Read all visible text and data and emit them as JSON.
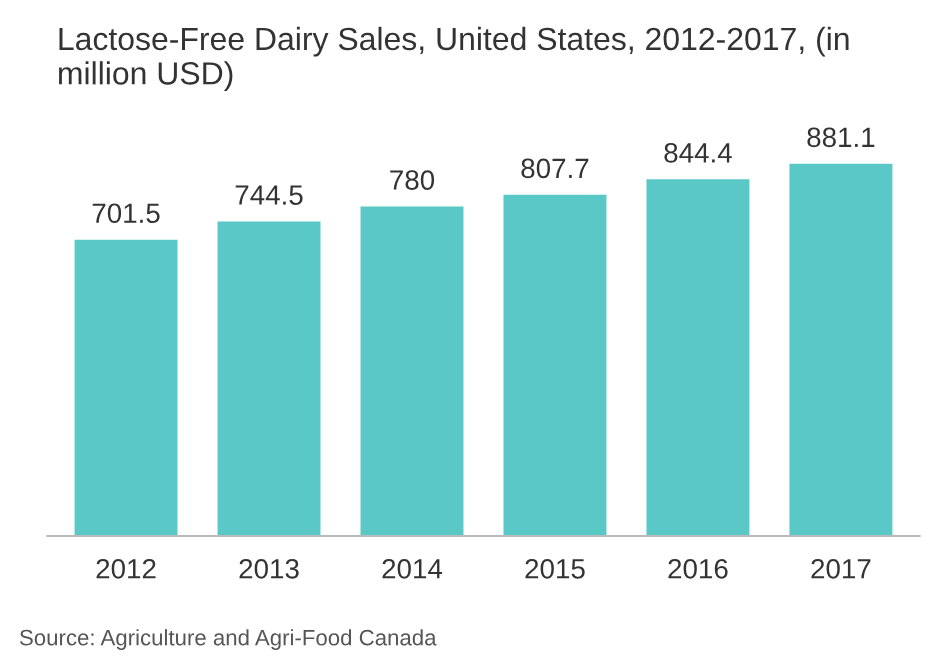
{
  "chart_data": {
    "type": "bar",
    "title": "Lactose-Free Dairy Sales, United States, 2012-2017, (in million USD)",
    "categories": [
      "2012",
      "2013",
      "2014",
      "2015",
      "2016",
      "2017"
    ],
    "values": [
      701.5,
      744.5,
      780,
      807.7,
      844.4,
      881.1
    ],
    "color": "#5bc8c8",
    "data_labels": true,
    "grid": false,
    "legend": false,
    "annotations": [
      "Source: Agriculture and Agri-Food Canada"
    ]
  }
}
